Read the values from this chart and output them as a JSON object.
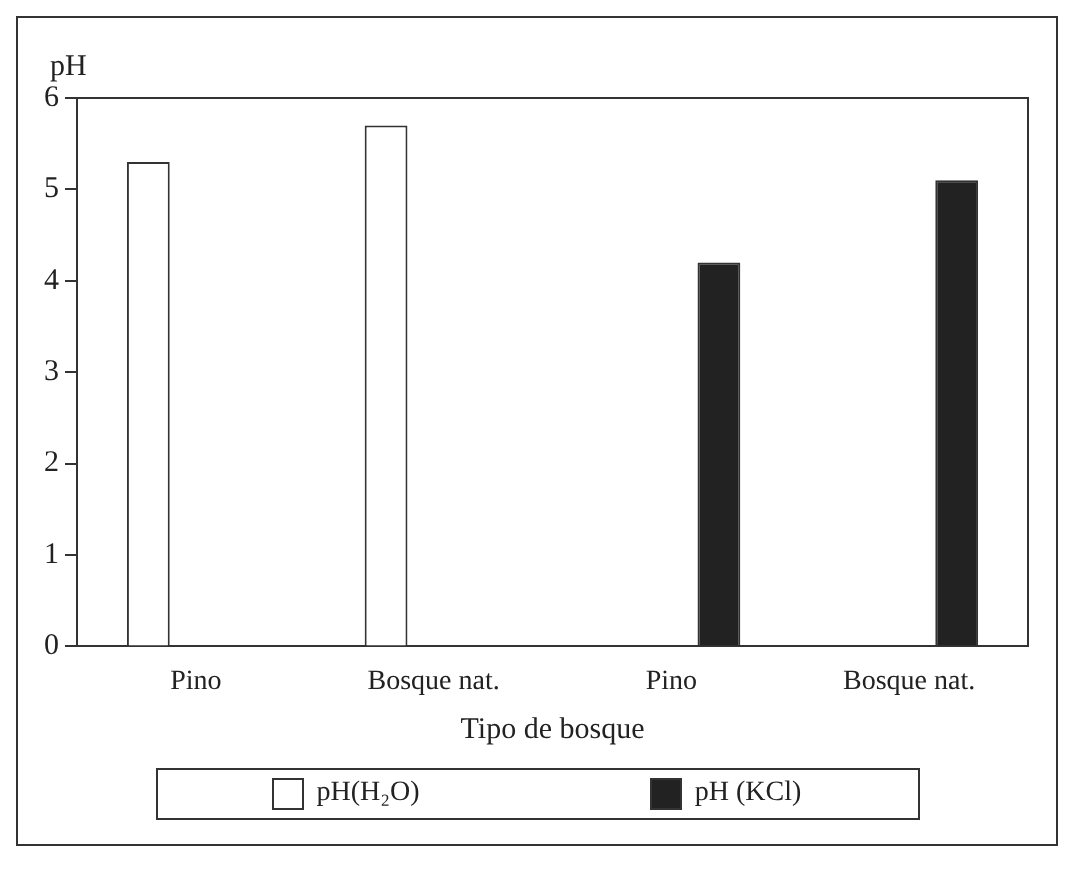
{
  "chart_data": {
    "type": "bar",
    "xlabel": "Tipo de bosque",
    "ylabel": "pH",
    "categories": [
      "Pino",
      "Bosque nat.",
      "Pino",
      "Bosque nat."
    ],
    "series": [
      {
        "name": "pH(H₂O)",
        "color": "#ffffff",
        "values": [
          5.3,
          5.7,
          null,
          null
        ]
      },
      {
        "name": "pH (KCl)",
        "color": "#222222",
        "values": [
          null,
          null,
          4.2,
          5.1
        ]
      }
    ],
    "ylim": [
      0,
      6
    ],
    "yticks": [
      0,
      1,
      2,
      3,
      4,
      5,
      6
    ],
    "grid": false,
    "legend": "bottom"
  }
}
